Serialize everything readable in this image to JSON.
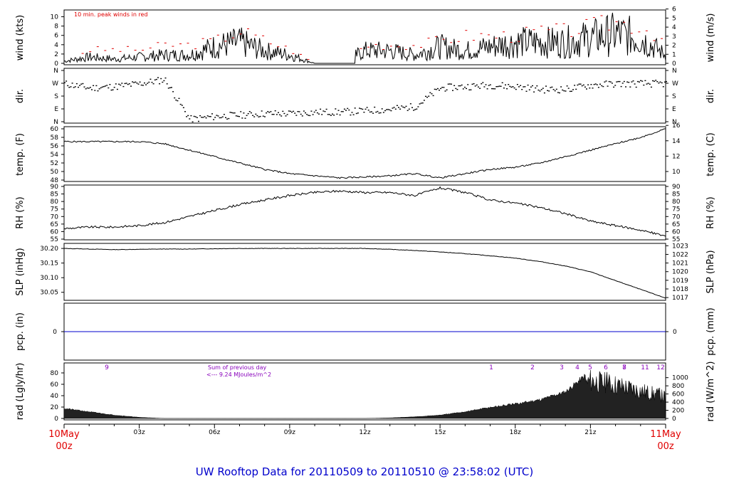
{
  "footer": {
    "title": "UW Rooftop Data for 20110509  to  20110510 @ 23:58:02  (UTC)",
    "color": "#0000cc"
  },
  "colors": {
    "peak": "#e00000",
    "pcp": "#0000cc",
    "radlabel": "#8800bb",
    "date": "#e00000"
  },
  "x_axis": {
    "start_label": [
      "10May",
      "00z"
    ],
    "end_label": [
      "11May",
      "00z"
    ],
    "hour_labels": [
      "03z",
      "06z",
      "09z",
      "12z",
      "15z",
      "18z",
      "21z"
    ],
    "range_hours": [
      0,
      24
    ]
  },
  "panels": {
    "wind": {
      "left_label": "wind (kts)",
      "right_label": "wind (m/s)",
      "note": "10 min. peak winds in red",
      "left_ticks": [
        "0",
        "2",
        "4",
        "6",
        "8",
        "10"
      ],
      "right_ticks": [
        "0",
        "1",
        "2",
        "3",
        "4",
        "5",
        "6"
      ]
    },
    "dir": {
      "left_label": "dir.",
      "right_label": "dir.",
      "ticks": [
        "N",
        "E",
        "S",
        "W",
        "N"
      ]
    },
    "temp": {
      "left_label": "temp. (F)",
      "right_label": "temp. (C)",
      "left_ticks": [
        "48",
        "50",
        "52",
        "54",
        "56",
        "58",
        "60"
      ],
      "right_ticks": [
        "10",
        "12",
        "14",
        "16"
      ]
    },
    "rh": {
      "left_label": "RH (%)",
      "right_label": "RH (%)",
      "ticks": [
        "55",
        "60",
        "65",
        "70",
        "75",
        "80",
        "85",
        "90"
      ]
    },
    "slp": {
      "left_label": "SLP (inHg)",
      "right_label": "SLP (hPa)",
      "left_ticks": [
        "30.05",
        "30.10",
        "30.15",
        "30.20"
      ],
      "right_ticks": [
        "1017",
        "1018",
        "1019",
        "1020",
        "1021",
        "1022",
        "1023"
      ]
    },
    "pcp": {
      "left_label": "pcp. (in)",
      "right_label": "pcp. (mm)",
      "left_ticks": [
        "0"
      ],
      "right_ticks": [
        "0"
      ]
    },
    "rad": {
      "left_label": "rad (Lgly/hr)",
      "right_label": "rad (W/m^2)",
      "left_ticks": [
        "0",
        "20",
        "40",
        "60",
        "80"
      ],
      "right_ticks": [
        "0",
        "200",
        "400",
        "600",
        "800",
        "1000"
      ],
      "note_line1": "Sum of previous day",
      "note_line2": "<--- 9.24 MJoules/m^2",
      "hour_marks": [
        "9",
        "1",
        "2",
        "3",
        "4",
        "5",
        "6",
        "7",
        "8",
        "9",
        "11",
        "12"
      ]
    }
  },
  "chart_data": [
    {
      "type": "line",
      "name": "wind",
      "ylabel": "wind (kts)",
      "ylim": [
        0,
        11
      ],
      "x_unit": "hours UTC",
      "x": [
        0,
        1,
        2,
        3,
        4,
        5,
        6,
        7,
        8,
        9,
        10,
        11,
        12,
        13,
        14,
        15,
        16,
        17,
        18,
        19,
        20,
        21,
        22,
        23,
        24
      ],
      "values": [
        0.5,
        1.5,
        1,
        1.5,
        2,
        2,
        4,
        5,
        3,
        2,
        0,
        0,
        3,
        3,
        2,
        4,
        3,
        4,
        5,
        5,
        5,
        6,
        7,
        6,
        2
      ],
      "peak_values": [
        1,
        3,
        3,
        3,
        4,
        4,
        5,
        7,
        5,
        3,
        0,
        0,
        4,
        4,
        4,
        5,
        6,
        6,
        6,
        7,
        7,
        8,
        9,
        8,
        5
      ]
    },
    {
      "type": "scatter",
      "name": "dir",
      "ylabel": "dir.",
      "y_ticks_deg": [
        0,
        90,
        180,
        270,
        360
      ],
      "x": [
        0,
        1,
        2,
        3,
        4,
        5,
        6,
        7,
        8,
        9,
        10,
        11,
        12,
        13,
        14,
        15,
        16,
        17,
        18,
        19,
        20,
        21,
        22,
        23,
        24
      ],
      "values": [
        270,
        240,
        250,
        270,
        300,
        20,
        40,
        50,
        60,
        60,
        70,
        70,
        80,
        90,
        110,
        240,
        250,
        260,
        250,
        230,
        230,
        260,
        270,
        270,
        270
      ]
    },
    {
      "type": "line",
      "name": "temp",
      "ylabel": "temp. (F)",
      "ylim": [
        48,
        60
      ],
      "x": [
        0,
        1,
        2,
        3,
        4,
        5,
        6,
        7,
        8,
        9,
        10,
        11,
        12,
        13,
        14,
        15,
        16,
        17,
        18,
        19,
        20,
        21,
        22,
        23,
        24
      ],
      "values": [
        57,
        57,
        57,
        57,
        56.5,
        55,
        53.5,
        52,
        50.5,
        49.5,
        49,
        48.5,
        48.7,
        49,
        49.5,
        48.5,
        49.5,
        50.5,
        51,
        52,
        53.5,
        55,
        56.5,
        58,
        60
      ]
    },
    {
      "type": "line",
      "name": "RH",
      "ylabel": "RH (%)",
      "ylim": [
        55,
        90
      ],
      "x": [
        0,
        1,
        2,
        3,
        4,
        5,
        6,
        7,
        8,
        9,
        10,
        11,
        12,
        13,
        14,
        15,
        16,
        17,
        18,
        19,
        20,
        21,
        22,
        23,
        24
      ],
      "values": [
        62,
        63,
        63,
        64,
        66,
        70,
        74,
        78,
        81,
        84,
        86,
        87,
        86,
        86,
        84,
        89,
        86,
        81,
        79,
        76,
        72,
        67,
        64,
        61,
        57
      ]
    },
    {
      "type": "line",
      "name": "SLP",
      "ylabel": "SLP (inHg)",
      "ylim": [
        30.025,
        30.21
      ],
      "x": [
        0,
        1,
        2,
        3,
        4,
        5,
        6,
        7,
        8,
        9,
        10,
        11,
        12,
        13,
        14,
        15,
        16,
        17,
        18,
        19,
        20,
        21,
        22,
        23,
        24
      ],
      "values": [
        30.2,
        30.198,
        30.196,
        30.197,
        30.198,
        30.198,
        30.199,
        30.2,
        30.2,
        30.2,
        30.2,
        30.2,
        30.2,
        30.197,
        30.193,
        30.188,
        30.182,
        30.175,
        30.167,
        30.155,
        30.14,
        30.12,
        30.09,
        30.06,
        30.03
      ]
    },
    {
      "type": "line",
      "name": "pcp",
      "ylabel": "pcp. (in)",
      "ylim": [
        -1,
        1
      ],
      "x": [
        0,
        24
      ],
      "values": [
        0,
        0
      ]
    },
    {
      "type": "area",
      "name": "rad",
      "ylabel": "rad (Lgly/hr)",
      "ylim": [
        0,
        95
      ],
      "x": [
        0,
        1,
        2,
        3,
        4,
        5,
        6,
        7,
        8,
        9,
        10,
        11,
        12,
        13,
        14,
        15,
        16,
        17,
        18,
        19,
        20,
        21,
        22,
        23,
        24
      ],
      "values": [
        18,
        12,
        6,
        2,
        0,
        0,
        0,
        0,
        0,
        0,
        0,
        0,
        0,
        1,
        3,
        6,
        12,
        20,
        26,
        34,
        48,
        85,
        75,
        62,
        48
      ]
    }
  ]
}
